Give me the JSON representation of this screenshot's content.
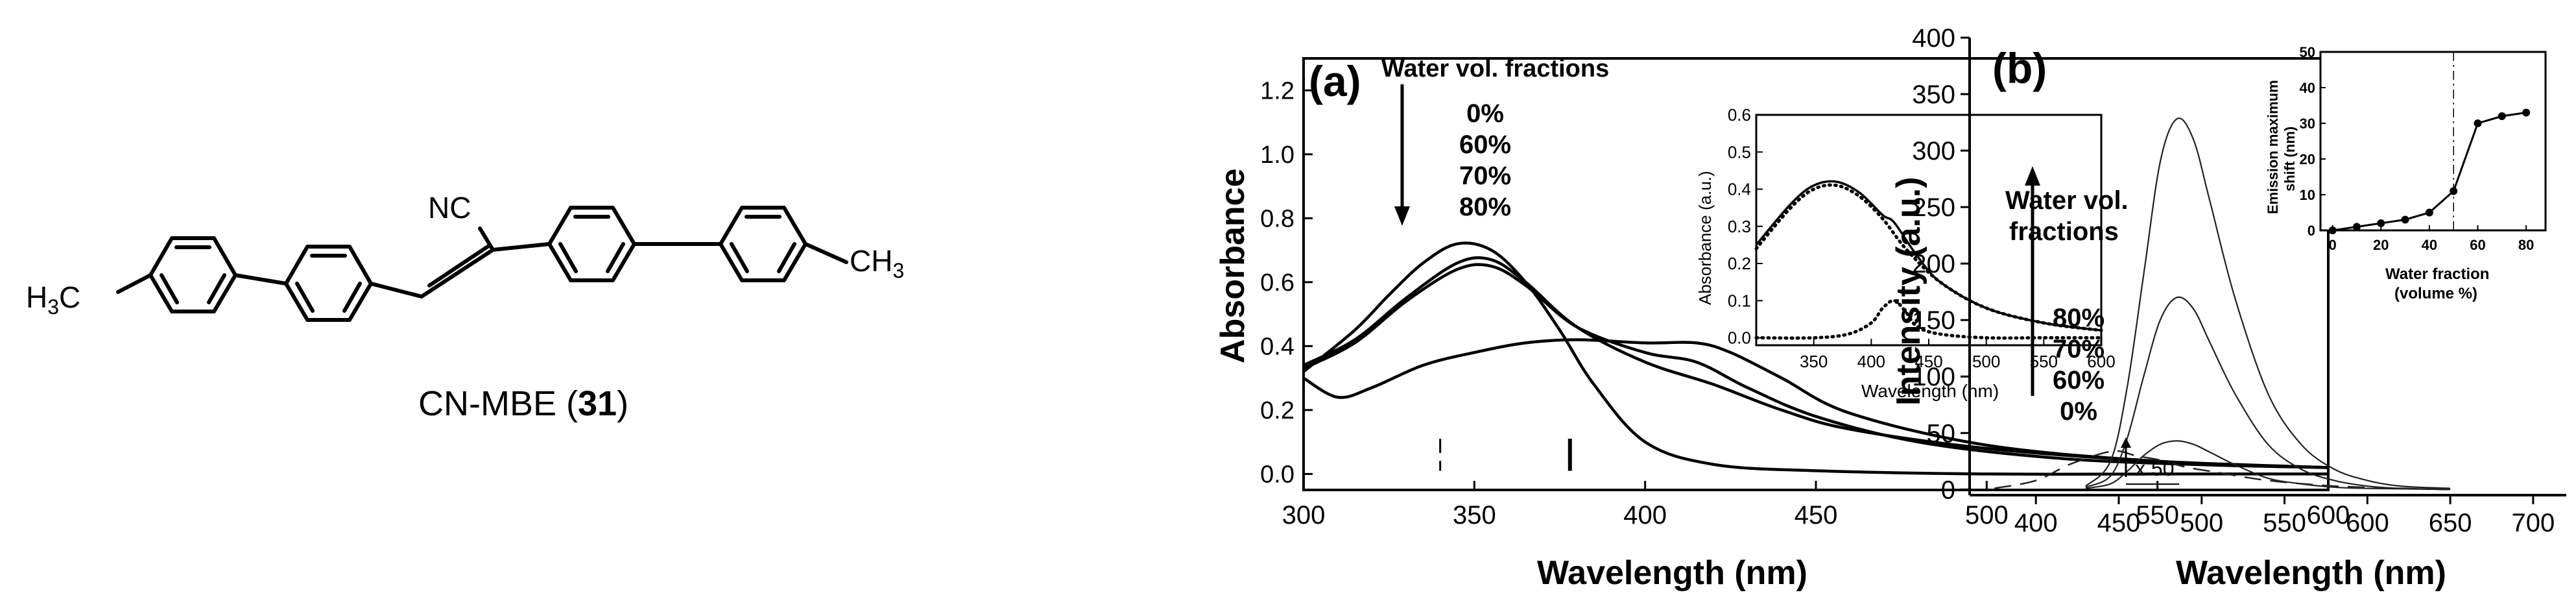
{
  "figure": {
    "compound": {
      "name_prefix": "CN-MBE (",
      "number": "31",
      "name_suffix": ")",
      "groups": {
        "left": "H3C",
        "right": "CH3",
        "nitrile": "NC"
      }
    }
  },
  "chart_data": [
    {
      "id": "a",
      "type": "line",
      "panel_label": "(a)",
      "xlabel": "Wavelength (nm)",
      "ylabel": "Absorbance",
      "xlim": [
        300,
        600
      ],
      "ylim": [
        -0.05,
        1.3
      ],
      "xticks": [
        "300",
        "350",
        "400",
        "450",
        "500",
        "550",
        "600"
      ],
      "yticks": [
        "0.0",
        "0.2",
        "0.4",
        "0.6",
        "0.8",
        "1.0",
        "1.2"
      ],
      "legend_title": "Water vol. fractions",
      "legend_items": [
        "0%",
        "60%",
        "70%",
        "80%"
      ],
      "series": [
        {
          "name": "0%",
          "x": [
            300,
            315,
            325,
            335,
            345,
            355,
            365,
            375,
            385,
            400,
            420,
            450,
            500,
            550,
            600
          ],
          "y": [
            0.32,
            0.45,
            0.56,
            0.66,
            0.72,
            0.7,
            0.6,
            0.45,
            0.28,
            0.1,
            0.03,
            0.01,
            0.0,
            0.0,
            0.0
          ]
        },
        {
          "name": "60%",
          "x": [
            300,
            315,
            330,
            345,
            355,
            365,
            380,
            400,
            420,
            440,
            460,
            500,
            550,
            600
          ],
          "y": [
            0.34,
            0.42,
            0.55,
            0.66,
            0.67,
            0.6,
            0.46,
            0.35,
            0.28,
            0.2,
            0.14,
            0.08,
            0.04,
            0.02
          ]
        },
        {
          "name": "70%",
          "x": [
            300,
            315,
            330,
            345,
            355,
            365,
            380,
            400,
            415,
            430,
            450,
            480,
            520,
            560,
            600
          ],
          "y": [
            0.33,
            0.41,
            0.54,
            0.64,
            0.65,
            0.59,
            0.46,
            0.38,
            0.35,
            0.27,
            0.18,
            0.1,
            0.05,
            0.03,
            0.02
          ]
        },
        {
          "name": "80%",
          "x": [
            300,
            310,
            320,
            335,
            350,
            365,
            380,
            400,
            415,
            425,
            440,
            460,
            500,
            550,
            600
          ],
          "y": [
            0.3,
            0.24,
            0.27,
            0.34,
            0.38,
            0.41,
            0.42,
            0.41,
            0.41,
            0.38,
            0.3,
            0.19,
            0.09,
            0.04,
            0.02
          ]
        }
      ],
      "markers": [
        {
          "style": "dashed",
          "x": 340
        },
        {
          "style": "solid",
          "x": 378
        }
      ],
      "inset": {
        "xlabel": "Wavelength (nm)",
        "ylabel": "Absorbance (a.u.)",
        "xlim": [
          300,
          600
        ],
        "ylim": [
          -0.02,
          0.6
        ],
        "xticks": [
          "350",
          "400",
          "450",
          "500",
          "550",
          "600"
        ],
        "yticks": [
          "0.0",
          "0.1",
          "0.2",
          "0.3",
          "0.4",
          "0.5",
          "0.6"
        ],
        "series": [
          {
            "name": "solid-upper",
            "x": [
              300,
              330,
              350,
              370,
              390,
              410,
              420,
              440,
              460,
              500,
              550,
              600
            ],
            "y": [
              0.25,
              0.36,
              0.41,
              0.42,
              0.39,
              0.33,
              0.31,
              0.22,
              0.15,
              0.08,
              0.04,
              0.02
            ]
          },
          {
            "name": "dotted-upper",
            "x": [
              300,
              330,
              350,
              370,
              390,
              410,
              430,
              460,
              500,
              550,
              600
            ],
            "y": [
              0.24,
              0.35,
              0.4,
              0.41,
              0.38,
              0.32,
              0.24,
              0.15,
              0.08,
              0.04,
              0.02
            ]
          },
          {
            "name": "dotted-lower",
            "x": [
              300,
              350,
              380,
              400,
              410,
              420,
              430,
              440,
              460,
              500,
              550,
              600
            ],
            "y": [
              0.0,
              0.0,
              0.01,
              0.04,
              0.08,
              0.1,
              0.07,
              0.03,
              0.01,
              0.0,
              0.0,
              0.0
            ]
          }
        ]
      }
    },
    {
      "id": "b",
      "type": "line",
      "panel_label": "(b)",
      "xlabel": "Wavelength (nm)",
      "ylabel": "Intensity (a.u.)",
      "xlim": [
        360,
        720
      ],
      "ylim": [
        -5,
        400
      ],
      "xticks": [
        "400",
        "450",
        "500",
        "550",
        "600",
        "650",
        "700"
      ],
      "yticks": [
        "0",
        "50",
        "100",
        "150",
        "200",
        "250",
        "300",
        "350",
        "400"
      ],
      "legend_title_lines": [
        "Water vol.",
        "fractions"
      ],
      "legend_items": [
        "80%",
        "70%",
        "60%",
        "0%"
      ],
      "annotation": "x 50",
      "series": [
        {
          "name": "80%",
          "x": [
            430,
            445,
            455,
            465,
            475,
            485,
            495,
            505,
            520,
            540,
            560,
            580,
            600,
            620,
            650
          ],
          "y": [
            3,
            25,
            90,
            190,
            290,
            328,
            310,
            255,
            170,
            85,
            40,
            18,
            8,
            3,
            1
          ]
        },
        {
          "name": "70%",
          "x": [
            430,
            445,
            455,
            465,
            475,
            485,
            495,
            505,
            520,
            540,
            560,
            580,
            600,
            620,
            650
          ],
          "y": [
            2,
            12,
            45,
            100,
            150,
            170,
            160,
            130,
            85,
            40,
            18,
            8,
            3,
            1,
            0
          ]
        },
        {
          "name": "60%",
          "x": [
            430,
            445,
            455,
            465,
            475,
            485,
            495,
            505,
            520,
            540,
            560,
            580,
            600,
            650
          ],
          "y": [
            1,
            5,
            16,
            30,
            40,
            43,
            40,
            33,
            22,
            10,
            5,
            2,
            1,
            0
          ]
        },
        {
          "name": "0%",
          "x": [
            375,
            400,
            420,
            440,
            450,
            460,
            475,
            490,
            510,
            540,
            580,
            620,
            650
          ],
          "y": [
            1,
            8,
            22,
            32,
            34,
            30,
            26,
            20,
            15,
            8,
            3,
            1,
            0
          ]
        }
      ],
      "inset": {
        "xlabel_lines": [
          "Water fraction",
          "(volume %)"
        ],
        "ylabel_lines": [
          "Emission maximum",
          "shift (nm)"
        ],
        "xlim": [
          -5,
          88
        ],
        "ylim": [
          0,
          50
        ],
        "xticks": [
          "0",
          "20",
          "40",
          "60",
          "80"
        ],
        "yticks": [
          "0",
          "10",
          "20",
          "30",
          "40",
          "50"
        ],
        "vline_x": 50,
        "points": {
          "x": [
            0,
            10,
            20,
            30,
            40,
            50,
            60,
            70,
            80
          ],
          "y": [
            0,
            1,
            2,
            3,
            5,
            11,
            30,
            32,
            33
          ]
        }
      }
    }
  ]
}
